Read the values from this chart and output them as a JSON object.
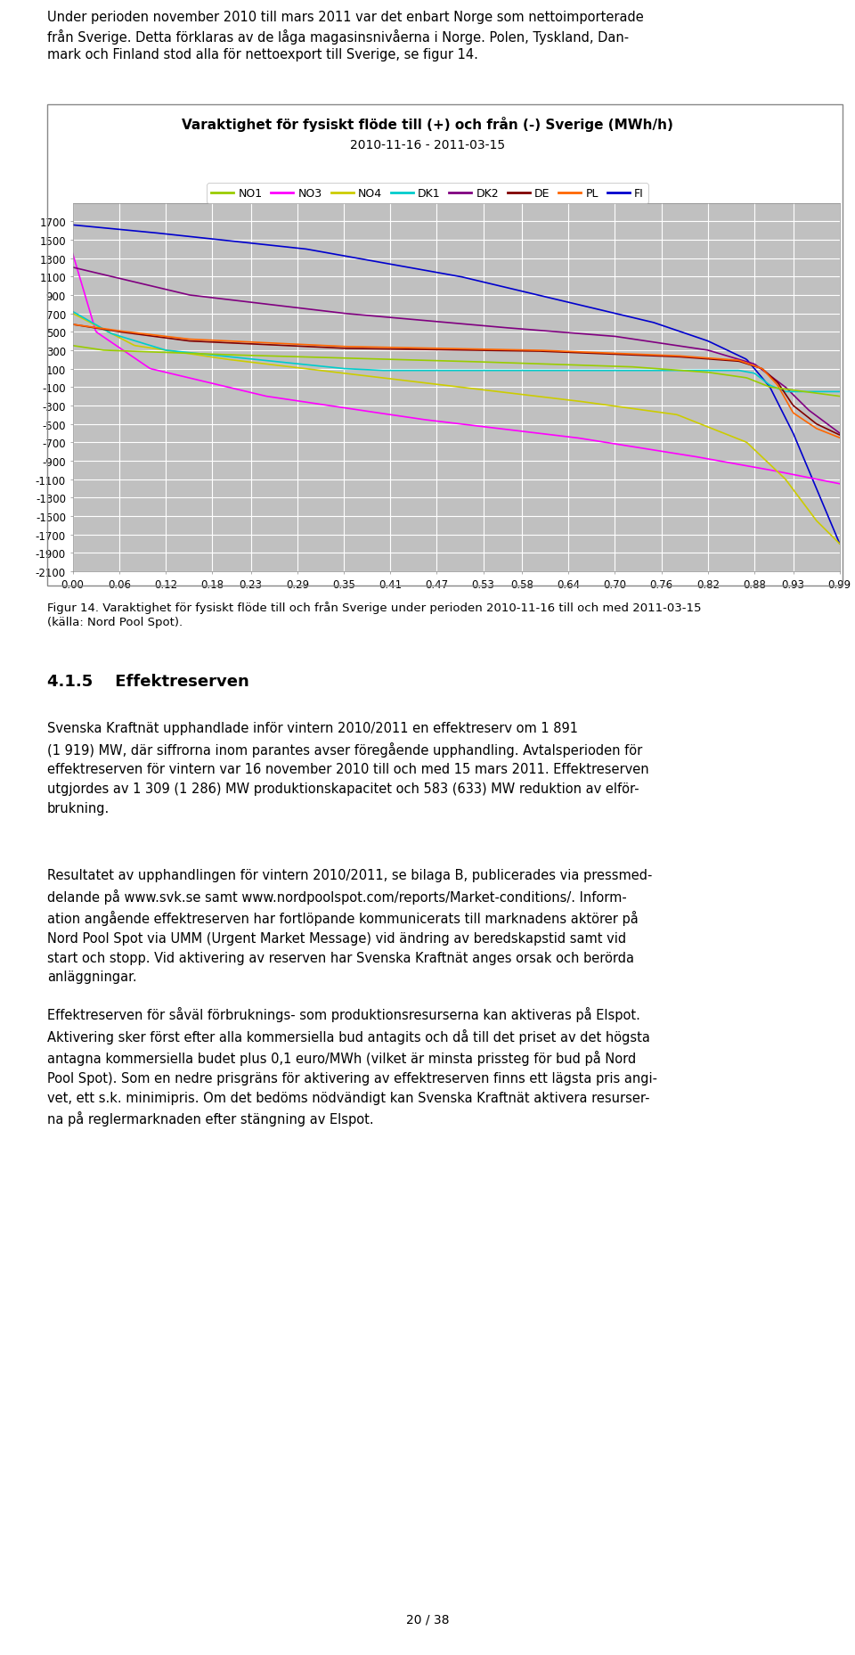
{
  "title_line1": "Varaktighet för fysiskt flöde till (+) och från (-) Sverige (MWh/h)",
  "title_line2": "2010-11-16 - 2011-03-15",
  "legend_labels": [
    "NO1",
    "NO3",
    "NO4",
    "DK1",
    "DK2",
    "DE",
    "PL",
    "FI"
  ],
  "line_colors": {
    "NO1": "#99CC00",
    "NO3": "#FF00FF",
    "NO4": "#CCCC00",
    "DK1": "#00CCCC",
    "DK2": "#800080",
    "DE": "#800000",
    "PL": "#FF6600",
    "FI": "#0000CD"
  },
  "ylim": [
    -2100,
    1900
  ],
  "yticks": [
    1700,
    1500,
    1300,
    1100,
    900,
    700,
    500,
    300,
    100,
    -100,
    -300,
    -500,
    -700,
    -900,
    -1100,
    -1300,
    -1500,
    -1700,
    -1900,
    -2100
  ],
  "xticks": [
    0.0,
    0.06,
    0.12,
    0.18,
    0.23,
    0.29,
    0.35,
    0.41,
    0.47,
    0.53,
    0.58,
    0.64,
    0.7,
    0.76,
    0.82,
    0.88,
    0.93,
    0.99
  ],
  "plot_bg_color": "#C0C0C0",
  "figure_bg": "#FFFFFF",
  "grid_color": "#FFFFFF",
  "title_fontsize": 11,
  "subtitle_fontsize": 10,
  "axis_fontsize": 8.5,
  "text_top": "Under perioden november 2010 till mars 2011 var det enbart Norge som nettoimporterade\nfrån Sverige. Detta förklaras av de låga magasinsnivåerna i Norge. Polen, Tyskland, Dan-\nmark och Finland stod alla för nettoexport till Sverige, se figur 14.",
  "caption": "Figur 14. Varaktighet för fysiskt flöde till och från Sverige under perioden 2010-11-16 till och med 2011-03-15\n(källa: Nord Pool Spot).",
  "section_header": "4.1.5    Effektreserven",
  "body1": "Svenska Kraftnät upphandlade inför vintern 2010/2011 en effektreserv om 1 891\n(1 919) MW, där siffrorna inom parantes avser föregående upphandling. Avtalsperioden för\neffektreserven för vintern var 16 november 2010 till och med 15 mars 2011. Effektreserven\nutgjordes av 1 309 (1 286) MW produktionskapacitet och 583 (633) MW reduktion av elför-\nbrukning.",
  "body2": "Resultatet av upphandlingen för vintern 2010/2011, se bilaga B, publicerades via pressmed-\ndelande på www.svk.se samt www.nordpoolspot.com/reports/Market-conditions/. Inform-\nation angående effektreserven har fortlöpande kommunicerats till marknadens aktörer på\nNord Pool Spot via UMM (Urgent Market Message) vid ändring av beredskapstid samt vid\nstart och stopp. Vid aktivering av reserven har Svenska Kraftnät anges orsak och berörda\nanläggningar.",
  "body3": "Effektreserven för såväl förbruknings- som produktionsresurserna kan aktiveras på Elspot.\nAktivering sker först efter alla kommersiella bud antagits och då till det priset av det högsta\nantagna kommersiella budet plus 0,1 euro/MWh (vilket är minsta prissteg för bud på Nord\nPool Spot). Som en nedre prisgräns för aktivering av effektreserven finns ett lägsta pris angi-\nvet, ett s.k. minimipris. Om det bedöms nödvändigt kan Svenska Kraftnät aktivera resurser-\nna på reglermarknaden efter stängning av Elspot.",
  "page_number": "20 / 38"
}
